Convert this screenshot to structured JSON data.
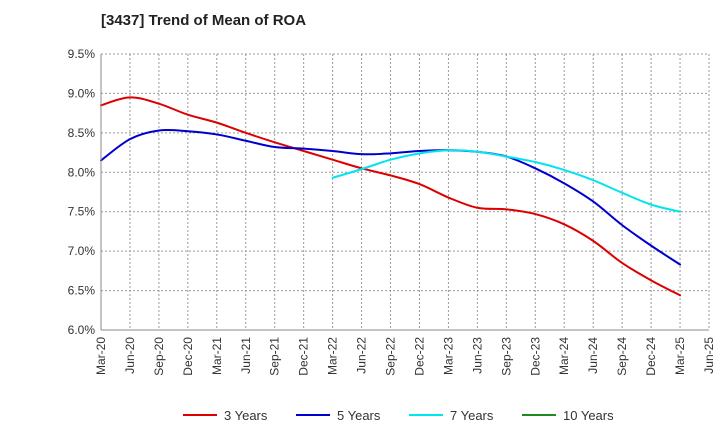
{
  "chart_data": {
    "type": "line",
    "title": "[3437]  Trend of Mean of ROA",
    "xlabel": "",
    "ylabel": "",
    "categories": [
      "Mar-20",
      "Jun-20",
      "Sep-20",
      "Dec-20",
      "Mar-21",
      "Jun-21",
      "Sep-21",
      "Dec-21",
      "Mar-22",
      "Jun-22",
      "Sep-22",
      "Dec-22",
      "Mar-23",
      "Jun-23",
      "Sep-23",
      "Dec-23",
      "Mar-24",
      "Jun-24",
      "Sep-24",
      "Dec-24",
      "Mar-25",
      "Jun-25"
    ],
    "ylim": [
      6.0,
      9.5
    ],
    "yticks": [
      6.0,
      6.5,
      7.0,
      7.5,
      8.0,
      8.5,
      9.0,
      9.5
    ],
    "ytick_labels": [
      "6.0%",
      "6.5%",
      "7.0%",
      "7.5%",
      "8.0%",
      "8.5%",
      "9.0%",
      "9.5%"
    ],
    "grid": true,
    "legend_position": "bottom",
    "series": [
      {
        "name": "3 Years",
        "color": "#dd0000",
        "values": [
          8.85,
          8.95,
          8.87,
          8.73,
          8.63,
          8.5,
          8.38,
          8.27,
          8.16,
          8.05,
          7.96,
          7.85,
          7.68,
          7.55,
          7.53,
          7.47,
          7.34,
          7.13,
          6.85,
          6.63,
          6.44,
          null
        ]
      },
      {
        "name": "5 Years",
        "color": "#0000cc",
        "values": [
          8.15,
          8.42,
          8.53,
          8.52,
          8.48,
          8.4,
          8.32,
          8.3,
          8.27,
          8.23,
          8.24,
          8.27,
          8.28,
          8.26,
          8.2,
          8.05,
          7.86,
          7.63,
          7.33,
          7.07,
          6.83,
          null
        ]
      },
      {
        "name": "7 Years",
        "color": "#00e5ee",
        "values": [
          null,
          null,
          null,
          null,
          null,
          null,
          null,
          null,
          7.93,
          8.04,
          8.16,
          8.24,
          8.28,
          8.26,
          8.2,
          8.13,
          8.03,
          7.9,
          7.74,
          7.59,
          7.5,
          null
        ]
      },
      {
        "name": "10 Years",
        "color": "#228822",
        "values": [
          null,
          null,
          null,
          null,
          null,
          null,
          null,
          null,
          null,
          null,
          null,
          null,
          null,
          null,
          null,
          null,
          null,
          null,
          null,
          null,
          null,
          null
        ]
      }
    ]
  }
}
